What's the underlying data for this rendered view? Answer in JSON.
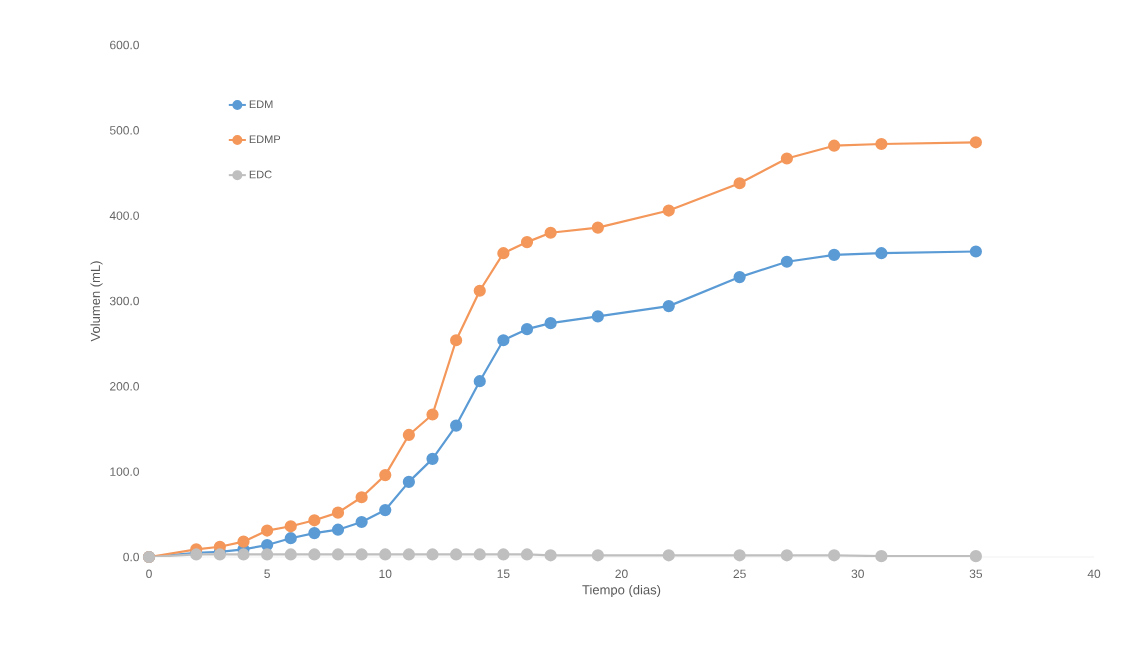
{
  "chart_data": {
    "type": "line",
    "xlabel": "Tiempo (dias)",
    "ylabel": "Volumen (mL)",
    "x": [
      0,
      2,
      3,
      4,
      5,
      6,
      7,
      8,
      9,
      10,
      11,
      12,
      13,
      14,
      15,
      16,
      17,
      19,
      22,
      25,
      27,
      29,
      31,
      35
    ],
    "series": [
      {
        "name": "EDM",
        "color": "#5b9bd5",
        "values": [
          0,
          5,
          6,
          9,
          14,
          22,
          28,
          32,
          41,
          55,
          88,
          115,
          154,
          206,
          254,
          267,
          274,
          282,
          294,
          328,
          346,
          354,
          356,
          358
        ]
      },
      {
        "name": "EDMP",
        "color": "#f4975a",
        "values": [
          0,
          9,
          12,
          18,
          31,
          36,
          43,
          52,
          70,
          96,
          143,
          167,
          254,
          312,
          356,
          369,
          380,
          386,
          406,
          438,
          467,
          482,
          484,
          486
        ]
      },
      {
        "name": "EDC",
        "color": "#bfbfbf",
        "values": [
          0,
          3,
          3,
          3,
          3,
          3,
          3,
          3,
          3,
          3,
          3,
          3,
          3,
          3,
          3,
          3,
          2,
          2,
          2,
          2,
          2,
          2,
          1,
          1
        ]
      }
    ],
    "xlim": [
      0,
      40
    ],
    "xticks": [
      0,
      5,
      10,
      15,
      20,
      25,
      30,
      35,
      40
    ],
    "ylim": [
      0,
      600
    ],
    "yticks": [
      {
        "value": 0,
        "label": "0.0"
      },
      {
        "value": 100,
        "label": "100.0"
      },
      {
        "value": 200,
        "label": "200.0"
      },
      {
        "value": 300,
        "label": "300.0"
      },
      {
        "value": 400,
        "label": "400.0"
      },
      {
        "value": 500,
        "label": "500.0"
      },
      {
        "value": 600,
        "label": "600.0"
      }
    ],
    "legend": "top left",
    "marker": "circle",
    "line_style": "solid",
    "grid": false
  }
}
